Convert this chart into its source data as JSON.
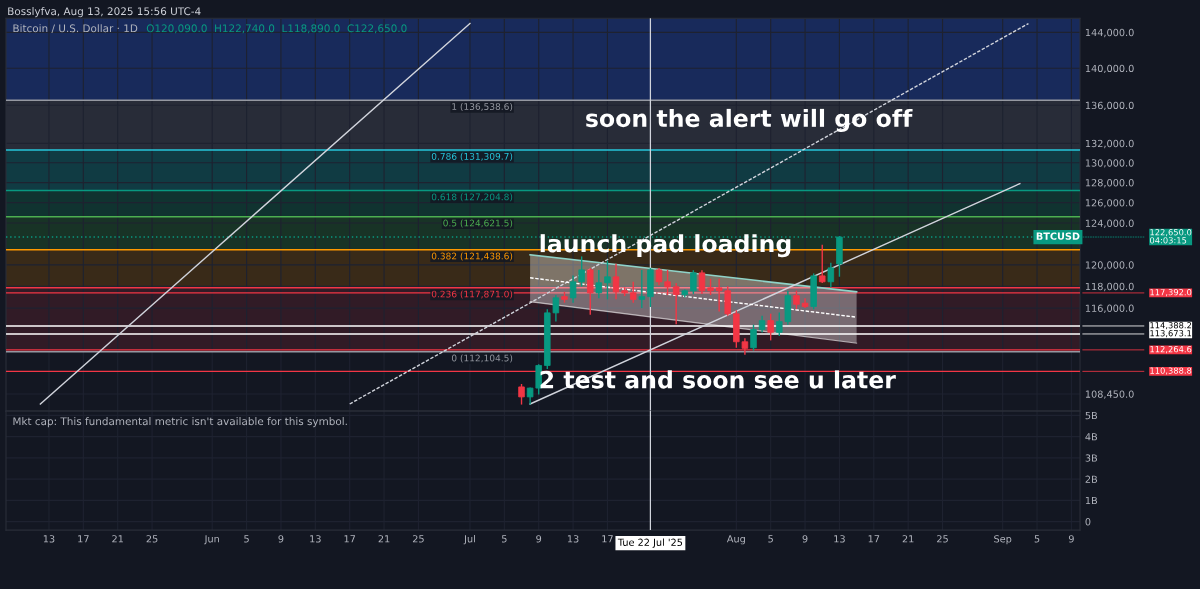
{
  "chart_data": [
    {
      "type": "candlestick",
      "title": "Bitcoin / U.S. Dollar · 1D",
      "subtitle": "O120,090.0  H122,740.0  L118,890.0  C122,650.0",
      "log": true,
      "grid": true,
      "tick_labels": "y",
      "x": [
        "2025-07-07",
        "2025-07-08",
        "2025-07-09",
        "2025-07-10",
        "2025-07-11",
        "2025-07-12",
        "2025-07-13",
        "2025-07-14",
        "2025-07-15",
        "2025-07-16",
        "2025-07-17",
        "2025-07-18",
        "2025-07-19",
        "2025-07-20",
        "2025-07-21",
        "2025-07-22",
        "2025-07-23",
        "2025-07-24",
        "2025-07-25",
        "2025-07-26",
        "2025-07-27",
        "2025-07-28",
        "2025-07-29",
        "2025-07-30",
        "2025-07-31",
        "2025-08-01",
        "2025-08-02",
        "2025-08-03",
        "2025-08-04",
        "2025-08-05",
        "2025-08-06",
        "2025-08-07",
        "2025-08-08",
        "2025-08-09",
        "2025-08-10",
        "2025-08-11",
        "2025-08-12",
        "2025-08-13"
      ],
      "ohlc": [
        [
          109050,
          109300,
          107550,
          108200
        ],
        [
          108200,
          109000,
          107550,
          108950
        ],
        [
          108950,
          111000,
          108400,
          110900
        ],
        [
          110900,
          115900,
          110600,
          115570
        ],
        [
          115570,
          117200,
          114800,
          116940
        ],
        [
          117050,
          117500,
          116500,
          116800
        ],
        [
          116940,
          119000,
          116500,
          118420
        ],
        [
          118420,
          120800,
          118000,
          119530
        ],
        [
          119530,
          119700,
          115400,
          117400
        ],
        [
          117400,
          119530,
          116900,
          118330
        ],
        [
          118330,
          120400,
          116800,
          118880
        ],
        [
          118880,
          120100,
          116800,
          117490
        ],
        [
          117590,
          117900,
          117100,
          117400
        ],
        [
          117400,
          118420,
          116500,
          116800
        ],
        [
          116800,
          119530,
          116000,
          117050
        ],
        [
          117050,
          119700,
          116100,
          119530
        ],
        [
          119530,
          119700,
          118100,
          118420
        ],
        [
          118420,
          119530,
          117200,
          117960
        ],
        [
          117960,
          118300,
          114550,
          117230
        ],
        [
          117230,
          117700,
          117000,
          117590
        ],
        [
          117590,
          119500,
          117300,
          119250
        ],
        [
          119250,
          119500,
          117300,
          117590
        ],
        [
          117860,
          118700,
          117200,
          117590
        ],
        [
          117860,
          118700,
          115700,
          117590
        ],
        [
          117590,
          118000,
          115300,
          115480
        ],
        [
          115480,
          115800,
          112450,
          112980
        ],
        [
          112980,
          113300,
          111830,
          112400
        ],
        [
          112450,
          114500,
          112200,
          114070
        ],
        [
          114070,
          115300,
          113800,
          114870
        ],
        [
          114870,
          115500,
          113100,
          113820
        ],
        [
          113820,
          115600,
          113500,
          114780
        ],
        [
          114780,
          117600,
          114500,
          117140
        ],
        [
          117140,
          117600,
          115900,
          116350
        ],
        [
          116450,
          116900,
          116000,
          116150
        ],
        [
          116150,
          119200,
          115900,
          118970
        ],
        [
          118970,
          121900,
          118300,
          118420
        ],
        [
          118420,
          120200,
          117900,
          119720
        ],
        [
          120090,
          122740,
          118890,
          122650
        ]
      ],
      "series": [
        {
          "type": "line",
          "color": "#d1d4dc",
          "line_style": "solid",
          "x": [
            "2025-05-12",
            "2025-07-01"
          ],
          "values": [
            107600,
            145000
          ]
        },
        {
          "type": "line",
          "color": "#d1d4dc",
          "line_style": "dashed",
          "x": [
            "2025-06-17",
            "2025-09-04"
          ],
          "values": [
            107600,
            145000
          ]
        },
        {
          "type": "line",
          "color": "#d1d4dc",
          "line_style": "solid",
          "x": [
            "2025-07-08",
            "2025-09-03"
          ],
          "values": [
            107600,
            127900
          ]
        },
        {
          "type": "line",
          "color": "#ffffff",
          "line_style": "dashed",
          "x": [
            "2025-07-08",
            "2025-08-15"
          ],
          "values": [
            118790,
            115180
          ],
          "lower": [
            116590,
            112860
          ],
          "upper": [
            120950,
            117500
          ]
        }
      ],
      "xlim": [
        "2025-05-08",
        "2025-09-10"
      ],
      "ylim": [
        107000,
        145600
      ],
      "yticks": [
        {
          "value": 108450,
          "label": "108,450.0"
        },
        {
          "value": 116000,
          "label": "116,000.0"
        },
        {
          "value": 118000,
          "label": "118,000.0"
        },
        {
          "value": 120000,
          "label": "120,000.0"
        },
        {
          "value": 124000,
          "label": "124,000.0"
        },
        {
          "value": 126000,
          "label": "126,000.0"
        },
        {
          "value": 128000,
          "label": "128,000.0"
        },
        {
          "value": 130000,
          "label": "130,000.0"
        },
        {
          "value": 132000,
          "label": "132,000.0"
        },
        {
          "value": 136000,
          "label": "136,000.0"
        },
        {
          "value": 140000,
          "label": "140,000.0"
        },
        {
          "value": 144000,
          "label": "144,000.0"
        }
      ],
      "xticks": [
        {
          "value": "2025-05-13",
          "label": null
        },
        {
          "value": "2025-05-17",
          "label": null
        },
        {
          "value": "2025-05-21",
          "label": null
        },
        {
          "value": "2025-05-25",
          "label": null
        },
        {
          "value": "2025-06-01",
          "label": null
        },
        {
          "value": "2025-06-05",
          "label": null
        },
        {
          "value": "2025-06-09",
          "label": null
        },
        {
          "value": "2025-06-13",
          "label": null
        },
        {
          "value": "2025-06-17",
          "label": null
        },
        {
          "value": "2025-06-21",
          "label": null
        },
        {
          "value": "2025-06-25",
          "label": null
        },
        {
          "value": "2025-07-01",
          "label": null
        },
        {
          "value": "2025-07-05",
          "label": null
        },
        {
          "value": "2025-07-09",
          "label": null
        },
        {
          "value": "2025-07-13",
          "label": null
        },
        {
          "value": "2025-07-17",
          "label": null
        },
        {
          "value": "2025-08-01",
          "label": null
        },
        {
          "value": "2025-08-05",
          "label": null
        },
        {
          "value": "2025-08-09",
          "label": null
        },
        {
          "value": "2025-08-13",
          "label": null
        },
        {
          "value": "2025-08-17",
          "label": null
        },
        {
          "value": "2025-08-21",
          "label": null
        },
        {
          "value": "2025-08-25",
          "label": null
        },
        {
          "value": "2025-09-01",
          "label": null
        },
        {
          "value": "2025-09-05",
          "label": null
        },
        {
          "value": "2025-09-09",
          "label": null
        }
      ],
      "bands": [
        {
          "axis": "y",
          "from": 136538.6,
          "to": 145600,
          "color": "#1e3a8a"
        },
        {
          "axis": "y",
          "from": 131309.7,
          "to": 136538.6,
          "color": "#3a3e4a"
        },
        {
          "axis": "y",
          "from": 127204.8,
          "to": 131309.7,
          "color": "#0e5a5e"
        },
        {
          "axis": "y",
          "from": 124621.5,
          "to": 127204.8,
          "color": "#0f4a3c"
        },
        {
          "axis": "y",
          "from": 121438.6,
          "to": 124621.5,
          "color": "#1e4a2a"
        },
        {
          "axis": "y",
          "from": 117871.0,
          "to": 121438.6,
          "color": "#5a3a10"
        },
        {
          "axis": "y",
          "from": 112104.5,
          "to": 117871.0,
          "color": "#4a1f2a"
        }
      ],
      "ref_lines": [
        {
          "axis": "y",
          "value": 136538.6,
          "color": "#9598a1"
        },
        {
          "axis": "y",
          "value": 131309.7,
          "color": "#26c6da"
        },
        {
          "axis": "y",
          "value": 127204.8,
          "color": "#089981"
        },
        {
          "axis": "y",
          "value": 124621.5,
          "color": "#4caf50"
        },
        {
          "axis": "y",
          "value": 121438.6,
          "color": "#ff9800"
        },
        {
          "axis": "y",
          "value": 117871.0,
          "color": "#f23645"
        },
        {
          "axis": "y",
          "value": 112104.5,
          "color": "#9598a1"
        },
        {
          "axis": "y",
          "value": 122650,
          "label": "122,650.0\n04:03:15",
          "color": "#089981",
          "line_style": "dotted"
        },
        {
          "axis": "y",
          "value": 117392,
          "label": "117,392.0",
          "color": "#f23645"
        },
        {
          "axis": "y",
          "value": 114388.2,
          "label": "114,388.2",
          "color": "#ffffff"
        },
        {
          "axis": "y",
          "value": 113673.1,
          "label": "113,673.1",
          "color": "#ffffff"
        },
        {
          "axis": "y",
          "value": 112264.6,
          "label": "112,264.6",
          "color": "#f23645"
        },
        {
          "axis": "y",
          "value": 110388.8,
          "label": "110,388.8",
          "color": "#f23645"
        },
        {
          "axis": "x",
          "value": "2025-07-22",
          "color": "#d1d4dc"
        }
      ],
      "annotations": [
        "Bosslyfva, Aug 13, 2025 15:56 UTC-4",
        {
          "text": "1 (136,538.6)",
          "x": "2025-07-06",
          "y": 136538.6
        },
        {
          "text": "0.786 (131,309.7)",
          "x": "2025-07-06",
          "y": 131309.7
        },
        {
          "text": "0.618 (127,204.8)",
          "x": "2025-07-06",
          "y": 127204.8
        },
        {
          "text": "0.5 (124,621.5)",
          "x": "2025-07-06",
          "y": 124621.5
        },
        {
          "text": "0.382 (121,438.6)",
          "x": "2025-07-06",
          "y": 121438.6
        },
        {
          "text": "0.236 (117,871.0)",
          "x": "2025-07-06",
          "y": 117871.0
        },
        {
          "text": "0 (112,104.5)",
          "x": "2025-07-06",
          "y": 112104.5
        },
        {
          "text": "BTCUSD",
          "x": "2025-09-10",
          "y": 122650
        },
        "soon the alert will go off",
        {
          "text": "launch pad loading",
          "x": "2025-07-09",
          "y": 121820
        },
        {
          "text": "2 test and soon see u later",
          "x": "2025-07-09",
          "y": 109490
        }
      ]
    },
    {
      "type": "line",
      "grid": true,
      "xlim": [
        "2025-05-08",
        "2025-09-10"
      ],
      "ylim": [
        -400000000,
        5200000000
      ],
      "yticks": [
        0,
        {
          "value": 1000000000,
          "label": "1B"
        },
        {
          "value": 2000000000,
          "label": "2B"
        },
        {
          "value": 3000000000,
          "label": "3B"
        },
        {
          "value": 4000000000,
          "label": "4B"
        },
        {
          "value": 5000000000,
          "label": "5B"
        }
      ],
      "xticks": [
        {
          "value": "2025-05-13",
          "label": "13"
        },
        {
          "value": "2025-05-17",
          "label": "17"
        },
        {
          "value": "2025-05-21",
          "label": "21"
        },
        {
          "value": "2025-05-25",
          "label": "25"
        },
        {
          "value": "2025-06-01",
          "label": "Jun"
        },
        {
          "value": "2025-06-05",
          "label": "5"
        },
        {
          "value": "2025-06-09",
          "label": "9"
        },
        {
          "value": "2025-06-13",
          "label": "13"
        },
        {
          "value": "2025-06-17",
          "label": "17"
        },
        {
          "value": "2025-06-21",
          "label": "21"
        },
        {
          "value": "2025-06-25",
          "label": "25"
        },
        {
          "value": "2025-07-01",
          "label": "Jul"
        },
        {
          "value": "2025-07-05",
          "label": "5"
        },
        {
          "value": "2025-07-09",
          "label": "9"
        },
        {
          "value": "2025-07-13",
          "label": "13"
        },
        {
          "value": "2025-07-17",
          "label": "17"
        },
        {
          "value": "2025-08-01",
          "label": "Aug"
        },
        {
          "value": "2025-08-05",
          "label": "5"
        },
        {
          "value": "2025-08-09",
          "label": "9"
        },
        {
          "value": "2025-08-13",
          "label": "13"
        },
        {
          "value": "2025-08-17",
          "label": "17"
        },
        {
          "value": "2025-08-21",
          "label": "21"
        },
        {
          "value": "2025-08-25",
          "label": "25"
        },
        {
          "value": "2025-09-01",
          "label": "Sep"
        },
        {
          "value": "2025-09-05",
          "label": "5"
        },
        {
          "value": "2025-09-09",
          "label": "9"
        }
      ],
      "ref_lines": [
        {
          "axis": "x",
          "value": "2025-07-22",
          "label": "Tue 22 Jul '25",
          "color": "#d1d4dc"
        }
      ],
      "annotations": [
        "Mkt cap: This fundamental metric isn't available for this symbol."
      ]
    }
  ]
}
